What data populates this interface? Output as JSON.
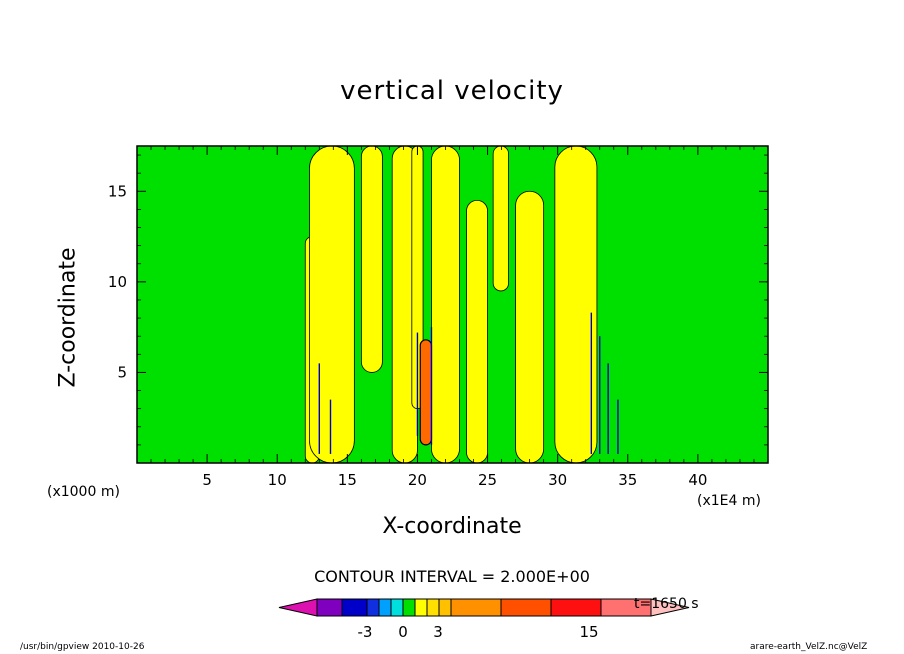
{
  "title": "vertical velocity",
  "footer": {
    "left": "/usr/bin/gpview   2010-10-26",
    "right": "arare-earth_VelZ.nc@VelZ"
  },
  "chart_data": {
    "type": "heatmap",
    "title": "vertical velocity",
    "xlabel": "X-coordinate",
    "ylabel": "Z-coordinate",
    "x_multiplier_note": "(x1000 m)",
    "x_unit_note": "(x1E4 m)",
    "xlim": [
      0,
      45
    ],
    "ylim": [
      0,
      17.5
    ],
    "x_ticks": [
      5,
      10,
      15,
      20,
      25,
      30,
      35,
      40
    ],
    "y_ticks": [
      5,
      10,
      15
    ],
    "contour_interval": "CONTOUR INTERVAL = 2.000E+00",
    "time": "t=1650 s",
    "colorbar_labels": [
      "-3",
      "0",
      "3",
      "15"
    ],
    "colorbar_colors": [
      "#dd10b0",
      "#8000c0",
      "#0000c8",
      "#1030e0",
      "#00a0ff",
      "#00dede",
      "#00e000",
      "#ffff00",
      "#ffe000",
      "#ffc000",
      "#ff9000",
      "#ff5000",
      "#ff1010",
      "#ff7070",
      "#ffc0c0"
    ],
    "background_level_color": "#00e000",
    "positive_level_color": "#ffff00",
    "strong_positive_color": "#ff6a00",
    "negative_color": "#0000c8",
    "features": [
      {
        "kind": "updraft_band",
        "x": [
          12.0,
          13.0
        ],
        "z": [
          0,
          12.5
        ]
      },
      {
        "kind": "updraft_band",
        "x": [
          12.3,
          15.5
        ],
        "z": [
          0,
          17.5
        ]
      },
      {
        "kind": "updraft_band",
        "x": [
          16.0,
          17.5
        ],
        "z": [
          5.0,
          17.5
        ]
      },
      {
        "kind": "updraft_band",
        "x": [
          18.2,
          20.0
        ],
        "z": [
          0,
          17.5
        ]
      },
      {
        "kind": "updraft_band",
        "x": [
          19.6,
          20.4
        ],
        "z": [
          3.0,
          17.5
        ]
      },
      {
        "kind": "updraft_band",
        "x": [
          21.0,
          23.0
        ],
        "z": [
          0,
          17.5
        ]
      },
      {
        "kind": "updraft_band",
        "x": [
          23.5,
          25.0
        ],
        "z": [
          0,
          14.5
        ]
      },
      {
        "kind": "updraft_band",
        "x": [
          25.4,
          26.5
        ],
        "z": [
          9.5,
          17.5
        ]
      },
      {
        "kind": "updraft_band",
        "x": [
          27.0,
          29.0
        ],
        "z": [
          0,
          15.0
        ]
      },
      {
        "kind": "updraft_band",
        "x": [
          29.8,
          32.8
        ],
        "z": [
          0,
          17.5
        ]
      },
      {
        "kind": "strong_updraft",
        "x": [
          20.2,
          21.0
        ],
        "z": [
          1.0,
          6.8
        ]
      }
    ]
  }
}
